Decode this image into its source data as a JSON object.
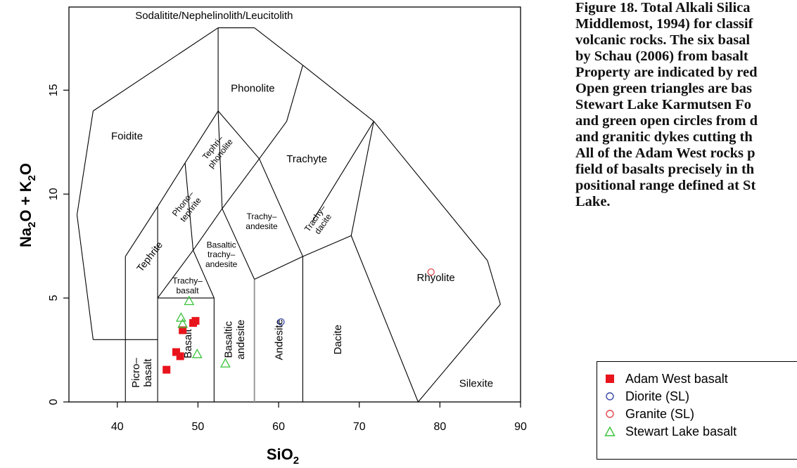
{
  "caption": {
    "lines": [
      "Figure 18.  Total Alkali Silica",
      "Middlemost, 1994) for classif",
      "volcanic rocks. The six basal",
      "by Schau  (2006) from basalt",
      "Property are indicated by red",
      "Open green triangles are bas",
      "Stewart Lake Karmutsen Fo",
      "and green open circles from d",
      "and granitic dykes cutting th",
      "All of the Adam West rocks p",
      "field of basalts precisely in th",
      "positional range defined at St",
      "Lake."
    ]
  },
  "colors": {
    "adam_west": "#e8141c",
    "diorite": "#3b4ba8",
    "granite": "#e0474f",
    "stewart": "#39c239",
    "boundary": "#000000",
    "divider": "#999999"
  },
  "chart_data": {
    "type": "scatter",
    "subtype": "TAS classification diagram",
    "xlabel": "SiO",
    "xlabel_sub": "2",
    "ylabel_parts": [
      "Na",
      "2",
      "O + K",
      "2",
      "O"
    ],
    "xlim": [
      34,
      90
    ],
    "ylim": [
      0,
      19
    ],
    "xticks": [
      40,
      50,
      60,
      70,
      80,
      90
    ],
    "yticks": [
      0,
      5,
      10,
      15
    ],
    "grid": false,
    "legend_position": "bottom-right",
    "fields": [
      {
        "lines": [
          "Sodalitite/Nephelinolith/Leucitolith"
        ],
        "x": 52,
        "y": 18.6,
        "size": 15
      },
      {
        "lines": [
          "Foidite"
        ],
        "x": 41.2,
        "y": 12.8,
        "size": 15
      },
      {
        "lines": [
          "Phonolite"
        ],
        "x": 56.8,
        "y": 15.1,
        "size": 15
      },
      {
        "lines": [
          "Trachyte"
        ],
        "x": 63.5,
        "y": 11.7,
        "size": 15
      },
      {
        "lines": [
          "Tephri–",
          "phonolite"
        ],
        "x": 52.3,
        "y": 12.1,
        "size": 12,
        "rotate": -52
      },
      {
        "lines": [
          "Phono–",
          "tephrite"
        ],
        "x": 48.6,
        "y": 9.4,
        "size": 12,
        "rotate": -52
      },
      {
        "lines": [
          "Tephrite"
        ],
        "x": 44.0,
        "y": 7.0,
        "size": 14,
        "rotate": -52
      },
      {
        "lines": [
          "Trachy–",
          "andesite"
        ],
        "x": 57.9,
        "y": 8.7,
        "size": 12
      },
      {
        "lines": [
          "Trachy–",
          "dacite"
        ],
        "x": 65.0,
        "y": 8.7,
        "size": 12,
        "rotate": -55
      },
      {
        "lines": [
          "Basaltic",
          "trachy–",
          "andesite"
        ],
        "x": 52.9,
        "y": 7.1,
        "size": 12
      },
      {
        "lines": [
          "Trachy–",
          "basalt"
        ],
        "x": 48.7,
        "y": 5.6,
        "size": 12
      },
      {
        "lines": [
          "Rhyolite"
        ],
        "x": 79.5,
        "y": 6.0,
        "size": 15
      },
      {
        "lines": [
          "Picro–",
          "basalt"
        ],
        "x": 43.0,
        "y": 1.4,
        "size": 15,
        "rotate": -90
      },
      {
        "lines": [
          "Basalt"
        ],
        "x": 48.7,
        "y": 2.8,
        "size": 15,
        "rotate": -90
      },
      {
        "lines": [
          "Basaltic",
          "andesite"
        ],
        "x": 54.5,
        "y": 3.0,
        "size": 15,
        "rotate": -90
      },
      {
        "lines": [
          "Andesite"
        ],
        "x": 60.0,
        "y": 3.0,
        "size": 15,
        "rotate": -90
      },
      {
        "lines": [
          "Dacite"
        ],
        "x": 67.3,
        "y": 3.0,
        "size": 15,
        "rotate": -90
      },
      {
        "lines": [
          "Silexite"
        ],
        "x": 84.5,
        "y": 0.9,
        "size": 15
      }
    ],
    "series": [
      {
        "name": "Adam West basalt",
        "marker": "filled-square",
        "color": "#e8141c",
        "points": [
          [
            46.1,
            1.55
          ],
          [
            47.3,
            2.4
          ],
          [
            47.8,
            2.2
          ],
          [
            48.1,
            3.45
          ],
          [
            49.4,
            3.8
          ],
          [
            49.7,
            3.9
          ]
        ]
      },
      {
        "name": "Diorite (SL)",
        "marker": "open-circle",
        "color": "#3b4ba8",
        "points": [
          [
            60.3,
            3.85
          ]
        ]
      },
      {
        "name": "Granite (SL)",
        "marker": "open-circle",
        "color": "#e0474f",
        "points": [
          [
            78.9,
            6.25
          ]
        ]
      },
      {
        "name": "Stewart Lake basalt",
        "marker": "open-triangle",
        "color": "#39c239",
        "points": [
          [
            48.9,
            4.85
          ],
          [
            47.9,
            4.05
          ],
          [
            48.1,
            3.75
          ],
          [
            49.9,
            2.3
          ],
          [
            53.4,
            1.85
          ]
        ]
      }
    ]
  }
}
